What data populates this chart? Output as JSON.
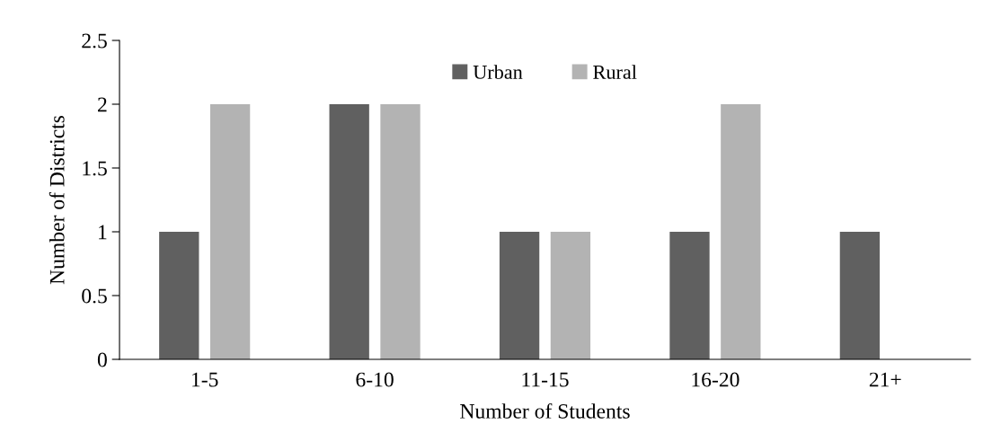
{
  "chart_data": {
    "type": "bar",
    "xlabel": "Number of Students",
    "ylabel": "Number of Districts",
    "categories": [
      "1-5",
      "6-10",
      "11-15",
      "16-20",
      "21+"
    ],
    "series": [
      {
        "name": "Urban",
        "color": "#606060",
        "values": [
          1,
          2,
          1,
          1,
          1
        ]
      },
      {
        "name": "Rural",
        "color": "#b3b3b3",
        "values": [
          2,
          2,
          1,
          2,
          0
        ]
      }
    ],
    "ylim": [
      0,
      2.5
    ],
    "yticks": [
      0,
      0.5,
      1,
      1.5,
      2,
      2.5
    ],
    "grid": false,
    "legend": "top"
  }
}
